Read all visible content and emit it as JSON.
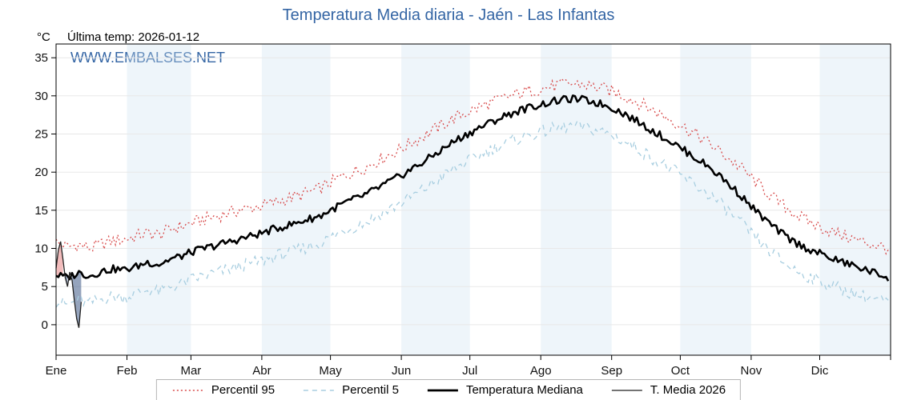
{
  "header": {
    "title": "Temperatura Media diaria - Jaén - Las Infantas",
    "unit": "°C",
    "last_temp": "Última temp: 2026-01-12",
    "watermark": "WWW.EMBALSES.NET"
  },
  "legend": {
    "p95": "Percentil 95",
    "p5": "Percentil 5",
    "median": "Temperatura Mediana",
    "t2026": "T. Media 2026"
  },
  "colors": {
    "accent_blue": "#3465a4",
    "p95_line": "#d84b4b",
    "p5_line": "#a8cee0",
    "median_line": "#000000",
    "t2026_line": "#222222",
    "month_band": "rgba(205,225,242,0.35)",
    "gridline": "#e8e8e8",
    "above_median_fill": "rgba(226,106,106,0.45)",
    "below_median_fill": "rgba(78,103,145,0.60)",
    "axis": "#000000"
  },
  "chart_data": {
    "type": "line",
    "title": "Temperatura Media diaria - Jaén - Las Infantas",
    "ylabel": "°C",
    "ylim": [
      -4,
      36.8
    ],
    "yticks": [
      0,
      5,
      10,
      15,
      20,
      25,
      30,
      35
    ],
    "x_tick_labels": [
      "Ene",
      "Feb",
      "Mar",
      "Abr",
      "May",
      "Jun",
      "Jul",
      "Ago",
      "Sep",
      "Oct",
      "Nov",
      "Dic"
    ],
    "month_start_days": [
      1,
      32,
      60,
      91,
      121,
      152,
      182,
      213,
      244,
      274,
      305,
      335,
      366
    ],
    "sample_days": [
      1,
      6,
      11,
      16,
      21,
      26,
      31,
      36,
      41,
      46,
      51,
      56,
      61,
      66,
      71,
      76,
      81,
      86,
      91,
      96,
      101,
      106,
      111,
      116,
      121,
      126,
      131,
      136,
      141,
      146,
      151,
      156,
      161,
      166,
      171,
      176,
      181,
      186,
      191,
      196,
      201,
      206,
      211,
      216,
      221,
      226,
      231,
      236,
      241,
      246,
      251,
      256,
      261,
      266,
      271,
      276,
      281,
      286,
      291,
      296,
      301,
      306,
      311,
      316,
      321,
      326,
      331,
      336,
      341,
      346,
      351,
      356,
      361,
      365
    ],
    "series": [
      {
        "name": "Percentil 95",
        "style": "dotted",
        "values": [
          10.8,
          10.2,
          10.5,
          10.0,
          10.6,
          11.0,
          11.2,
          11.6,
          12.0,
          11.8,
          12.5,
          12.9,
          13.4,
          13.8,
          14.2,
          14.6,
          15.0,
          15.3,
          15.6,
          16.0,
          16.4,
          16.8,
          17.3,
          17.8,
          18.6,
          19.4,
          20.0,
          20.6,
          21.4,
          22.2,
          22.9,
          23.8,
          24.6,
          25.5,
          26.4,
          27.2,
          27.9,
          28.5,
          29.1,
          29.6,
          30.1,
          30.5,
          30.8,
          31.1,
          31.4,
          31.6,
          31.5,
          31.2,
          30.9,
          30.4,
          29.8,
          29.1,
          28.3,
          27.5,
          26.7,
          25.8,
          24.9,
          23.9,
          22.8,
          21.6,
          20.4,
          19.0,
          17.6,
          16.3,
          15.2,
          14.2,
          13.4,
          12.7,
          12.1,
          11.6,
          11.1,
          10.7,
          10.3,
          10.0
        ]
      },
      {
        "name": "Percentil 5",
        "style": "dashed",
        "values": [
          3.0,
          2.6,
          3.2,
          2.8,
          3.4,
          3.7,
          3.6,
          4.0,
          4.6,
          4.3,
          5.0,
          5.4,
          6.0,
          6.4,
          6.8,
          7.2,
          7.6,
          8.0,
          8.4,
          8.9,
          9.3,
          9.7,
          10.2,
          10.6,
          11.4,
          12.2,
          12.8,
          13.4,
          14.2,
          15.0,
          15.8,
          16.7,
          17.6,
          18.6,
          19.6,
          20.6,
          21.4,
          22.2,
          22.9,
          23.6,
          24.2,
          24.7,
          25.1,
          25.5,
          25.8,
          26.0,
          25.9,
          25.6,
          25.2,
          24.6,
          23.8,
          22.9,
          22.0,
          21.1,
          20.2,
          19.2,
          18.2,
          17.2,
          16.0,
          14.6,
          13.2,
          11.6,
          10.2,
          8.9,
          7.8,
          6.9,
          6.2,
          5.6,
          5.0,
          4.5,
          4.0,
          3.6,
          3.2,
          2.9
        ]
      },
      {
        "name": "Temperatura Mediana",
        "style": "solid-thick",
        "values": [
          6.5,
          6.2,
          6.8,
          6.4,
          7.0,
          7.3,
          7.2,
          7.6,
          8.2,
          7.9,
          8.6,
          9.0,
          9.6,
          10.0,
          10.4,
          10.8,
          11.2,
          11.6,
          12.0,
          12.5,
          12.9,
          13.3,
          13.8,
          14.2,
          15.0,
          15.8,
          16.4,
          17.0,
          17.8,
          18.6,
          19.4,
          20.3,
          21.2,
          22.2,
          23.2,
          24.2,
          25.0,
          25.8,
          26.5,
          27.2,
          27.8,
          28.3,
          28.7,
          29.1,
          29.4,
          29.6,
          29.5,
          29.2,
          28.8,
          28.2,
          27.4,
          26.5,
          25.6,
          24.7,
          23.8,
          22.8,
          21.8,
          20.8,
          19.6,
          18.2,
          16.8,
          15.2,
          13.8,
          12.5,
          11.4,
          10.5,
          9.8,
          9.2,
          8.6,
          8.1,
          7.6,
          7.1,
          6.6,
          6.2
        ]
      },
      {
        "name": "T. Media 2026",
        "style": "solid-thin",
        "days": [
          1,
          2,
          3,
          4,
          5,
          6,
          7,
          8,
          9,
          10,
          11,
          12
        ],
        "values": [
          7.4,
          9.8,
          10.9,
          8.6,
          6.2,
          5.0,
          6.9,
          5.8,
          3.2,
          0.8,
          -0.4,
          3.0
        ]
      }
    ]
  }
}
